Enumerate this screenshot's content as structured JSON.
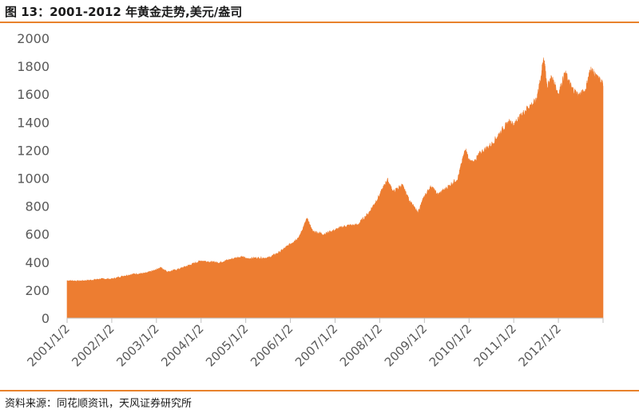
{
  "title": "图 13：2001-2012 年黄金走势,美元/盎司",
  "source": "资料来源：同花顺资讯，天风证券研究所",
  "colors": {
    "accent": "#E8822C",
    "area": "#ED7D31",
    "axis": "#BFBFBF",
    "text": "#595959"
  },
  "chart_data": {
    "type": "area",
    "title": "",
    "xlabel": "",
    "ylabel": "",
    "ylim": [
      0,
      2000
    ],
    "yticks": [
      0,
      200,
      400,
      600,
      800,
      1000,
      1200,
      1400,
      1600,
      1800,
      2000
    ],
    "xlim": [
      2001.0,
      2013.0
    ],
    "grid": false,
    "legend": "none",
    "x_tick_labels": [
      "2001/1/2",
      "2002/1/2",
      "2003/1/2",
      "2004/1/2",
      "2005/1/2",
      "2006/1/2",
      "2007/1/2",
      "2008/1/2",
      "2009/1/2",
      "2010/1/2",
      "2011/1/2",
      "2012/1/2"
    ],
    "series": [
      {
        "x": [
          2001.0,
          2001.25,
          2001.5,
          2001.75,
          2002.0,
          2002.25,
          2002.5,
          2002.75,
          2003.0,
          2003.1,
          2003.25,
          2003.5,
          2003.75,
          2004.0,
          2004.25,
          2004.4,
          2004.6,
          2004.9,
          2005.0,
          2005.25,
          2005.5,
          2005.75,
          2006.0,
          2006.2,
          2006.37,
          2006.5,
          2006.75,
          2007.0,
          2007.25,
          2007.5,
          2007.75,
          2008.0,
          2008.17,
          2008.3,
          2008.5,
          2008.65,
          2008.85,
          2009.0,
          2009.15,
          2009.3,
          2009.5,
          2009.75,
          2009.92,
          2010.0,
          2010.1,
          2010.25,
          2010.5,
          2010.75,
          2010.9,
          2011.0,
          2011.1,
          2011.3,
          2011.5,
          2011.6,
          2011.67,
          2011.75,
          2011.85,
          2012.0,
          2012.15,
          2012.3,
          2012.45,
          2012.6,
          2012.72,
          2012.85,
          2012.95,
          2013.0
        ],
        "values": [
          268,
          265,
          270,
          280,
          279,
          300,
          315,
          320,
          345,
          360,
          330,
          350,
          380,
          410,
          400,
          395,
          415,
          440,
          425,
          430,
          430,
          470,
          530,
          580,
          710,
          620,
          600,
          630,
          660,
          665,
          750,
          880,
          990,
          900,
          950,
          850,
          750,
          870,
          940,
          880,
          930,
          1000,
          1210,
          1120,
          1110,
          1180,
          1240,
          1350,
          1400,
          1380,
          1420,
          1500,
          1550,
          1700,
          1860,
          1650,
          1720,
          1600,
          1750,
          1640,
          1590,
          1620,
          1780,
          1720,
          1690,
          1660
        ]
      }
    ]
  }
}
